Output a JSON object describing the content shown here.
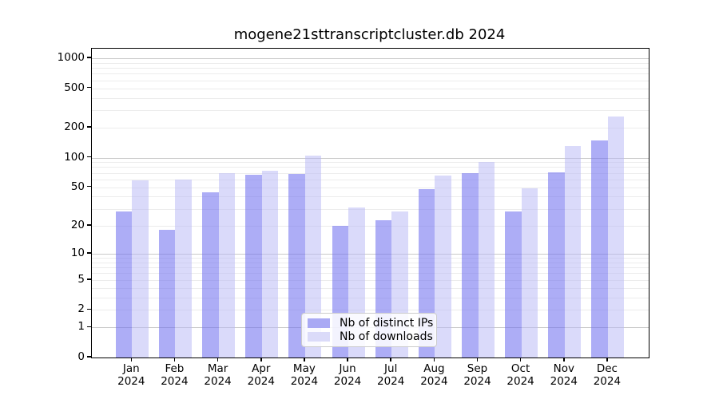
{
  "title": "mogene21sttranscriptcluster.db 2024",
  "chart_data": {
    "type": "bar",
    "title": "mogene21sttranscriptcluster.db 2024",
    "categories": [
      "Jan 2024",
      "Feb 2024",
      "Mar 2024",
      "Apr 2024",
      "May 2024",
      "Jun 2024",
      "Jul 2024",
      "Aug 2024",
      "Sep 2024",
      "Oct 2024",
      "Nov 2024",
      "Dec 2024"
    ],
    "series": [
      {
        "name": "Nb of distinct IPs",
        "color": "rgba(110,110,240,0.57)",
        "swatch_color": "#a9a9f4",
        "values": [
          28,
          18,
          44,
          67,
          68,
          20,
          23,
          48,
          69,
          28,
          71,
          150
        ]
      },
      {
        "name": "Nb of downloads",
        "color": "rgba(185,185,246,0.52)",
        "swatch_color": "#dbdbf9",
        "values": [
          59,
          60,
          69,
          73,
          105,
          31,
          28,
          66,
          90,
          49,
          130,
          260
        ]
      }
    ],
    "y_ticks": [
      0,
      1,
      2,
      5,
      10,
      20,
      50,
      100,
      200,
      500,
      1000
    ],
    "y_scale": "log10(value+1)",
    "ylim": [
      0,
      1200
    ],
    "xlabel": "",
    "ylabel": "",
    "grid": true,
    "legend_position": "lower center inside plot"
  },
  "colors": {
    "major_grid": "#c9c9c9",
    "minor_grid": "#ececec",
    "axis": "#000000",
    "background": "#ffffff",
    "legend_border": "#cccccc"
  }
}
